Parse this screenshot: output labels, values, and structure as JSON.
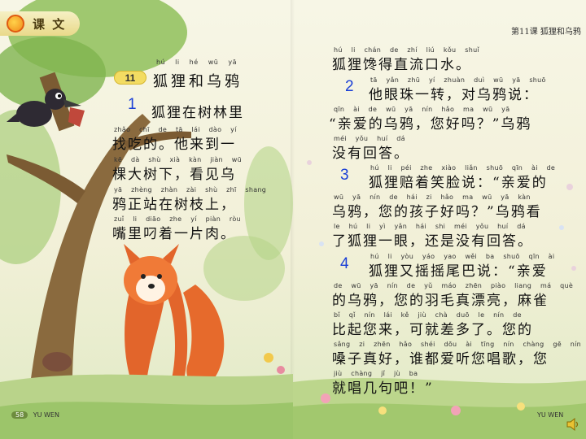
{
  "header": {
    "label": "课 文",
    "right": "第11课 狐狸和乌鸦"
  },
  "lesson": {
    "badge": "11",
    "title": "狐狸和乌鸦",
    "title_pinyin": "hú li hé wū yā"
  },
  "paragraphs": [
    {
      "num": "1",
      "lines": [
        {
          "py": "",
          "text": "狐狸在树林里"
        },
        {
          "py": "zhǎo chī de tā lái dào yí",
          "text": "找吃的。他来到一"
        },
        {
          "py": "kē dà shù xià kàn jiàn wū",
          "text": "棵大树下，看见乌"
        },
        {
          "py": "yā zhèng zhàn zài shù zhī shang",
          "text": "鸦正站在树枝上，"
        },
        {
          "py": "zuǐ li diāo zhe yí piàn ròu",
          "text": "嘴里叼着一片肉。"
        }
      ]
    },
    {
      "num": "2",
      "lines": [
        {
          "py": "hú li chán de zhí liú kǒu shuǐ",
          "text": "狐狸馋得直流口水。"
        },
        {
          "py": "tā yǎn zhū yí zhuàn duì wū yā shuō",
          "text": "他眼珠一转，对乌鸦说："
        },
        {
          "py": "qīn ài de wū yā nín hǎo ma wū yā",
          "text": "“亲爱的乌鸦，您好吗？”乌鸦"
        },
        {
          "py": "méi yǒu huí dá",
          "text": "没有回答。"
        }
      ]
    },
    {
      "num": "3",
      "lines": [
        {
          "py": "hú li péi zhe xiào liǎn shuō qīn ài de",
          "text": "狐狸赔着笑脸说：“亲爱的"
        },
        {
          "py": "wū yā nín de hái zi hǎo ma wū yā kàn",
          "text": "乌鸦，您的孩子好吗？”乌鸦看"
        },
        {
          "py": "le hú li yì yǎn hái shi méi yǒu huí dá",
          "text": "了狐狸一眼，还是没有回答。"
        }
      ]
    },
    {
      "num": "4",
      "lines": [
        {
          "py": "hú li yòu yáo yao wěi ba shuō qīn ài",
          "text": "狐狸又摇摇尾巴说：“亲爱"
        },
        {
          "py": "de wū yā nín de yǔ máo zhēn piào liang má què",
          "text": "的乌鸦，您的羽毛真漂亮，麻雀"
        },
        {
          "py": "bǐ qǐ nín lái kě jiù chà duō le nín de",
          "text": "比起您来，可就差多了。您的"
        },
        {
          "py": "sǎng zi zhēn hǎo shéi dōu ài tīng nín chàng gē nín",
          "text": "嗓子真好，谁都爱听您唱歌，您"
        },
        {
          "py": "jiù chàng jǐ jù ba",
          "text": "就唱几句吧！”"
        }
      ]
    }
  ],
  "footer": {
    "page": "58",
    "left": "YU WEN",
    "right": "YU WEN"
  }
}
